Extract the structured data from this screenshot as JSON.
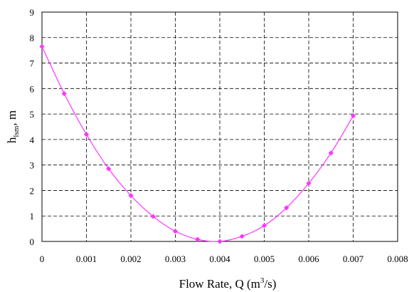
{
  "chart_data": {
    "type": "scatter",
    "xlabel": "Flow Rate, Q (m",
    "xlabel_sup": "3",
    "xlabel_end": "/s)",
    "ylabel_main": "h",
    "ylabel_sub": "lsm",
    "ylabel_end": ", m",
    "xlim": [
      0,
      0.008
    ],
    "ylim": [
      0,
      9
    ],
    "x_ticks": [
      "0",
      "0.001",
      "0.002",
      "0.003",
      "0.004",
      "0.005",
      "0.006",
      "0.007",
      "0.008"
    ],
    "y_ticks": [
      "0",
      "1",
      "2",
      "3",
      "4",
      "5",
      "6",
      "7",
      "8",
      "9"
    ],
    "grid": true,
    "grid_style": "dashed",
    "series": [
      {
        "color": "#ff33ff",
        "marker": "diamond",
        "smooth_line": true,
        "points": [
          {
            "x": 0,
            "y": 7.65
          },
          {
            "x": 0.0005,
            "y": 5.8
          },
          {
            "x": 0.001,
            "y": 4.2
          },
          {
            "x": 0.0015,
            "y": 2.85
          },
          {
            "x": 0.002,
            "y": 1.8
          },
          {
            "x": 0.0025,
            "y": 0.98
          },
          {
            "x": 0.003,
            "y": 0.4
          },
          {
            "x": 0.0035,
            "y": 0.08
          },
          {
            "x": 0.004,
            "y": 0.0
          },
          {
            "x": 0.0045,
            "y": 0.2
          },
          {
            "x": 0.005,
            "y": 0.62
          },
          {
            "x": 0.0055,
            "y": 1.32
          },
          {
            "x": 0.006,
            "y": 2.28
          },
          {
            "x": 0.0065,
            "y": 3.47
          },
          {
            "x": 0.007,
            "y": 4.93
          }
        ]
      }
    ]
  }
}
